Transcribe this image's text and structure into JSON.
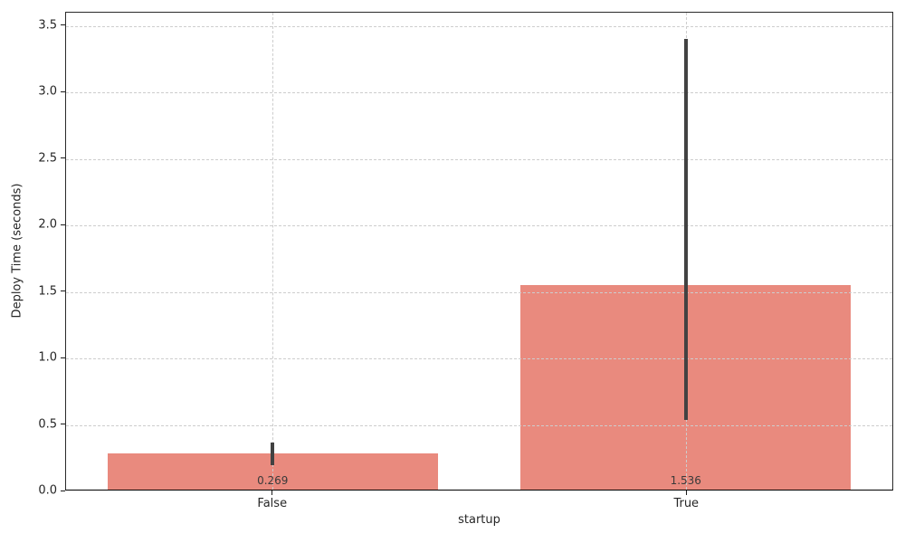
{
  "chart_data": {
    "type": "bar",
    "title": "",
    "xlabel": "startup",
    "ylabel": "Deploy Time (seconds)",
    "categories": [
      "False",
      "True"
    ],
    "values": [
      0.269,
      1.536
    ],
    "value_labels": [
      "0.269",
      "1.536"
    ],
    "error_bars": [
      {
        "low": 0.2,
        "high": 0.37
      },
      {
        "low": 0.54,
        "high": 3.4
      }
    ],
    "ylim": [
      0,
      3.6
    ],
    "yticks": [
      0.0,
      0.5,
      1.0,
      1.5,
      2.0,
      2.5,
      3.0,
      3.5
    ],
    "ytick_labels": [
      "0.0",
      "0.5",
      "1.0",
      "1.5",
      "2.0",
      "2.5",
      "3.0",
      "3.5"
    ],
    "grid": {
      "style": "dashed",
      "horizontal": true,
      "vertical": true
    },
    "legend": "none",
    "colors": {
      "bar": "#e98a7e",
      "error_bar": "#424242",
      "grid": "#cdcdcd",
      "spine": "#2a2a2a",
      "text": "#262626",
      "value_label": "#3a3a3a",
      "background": "#ffffff"
    }
  }
}
